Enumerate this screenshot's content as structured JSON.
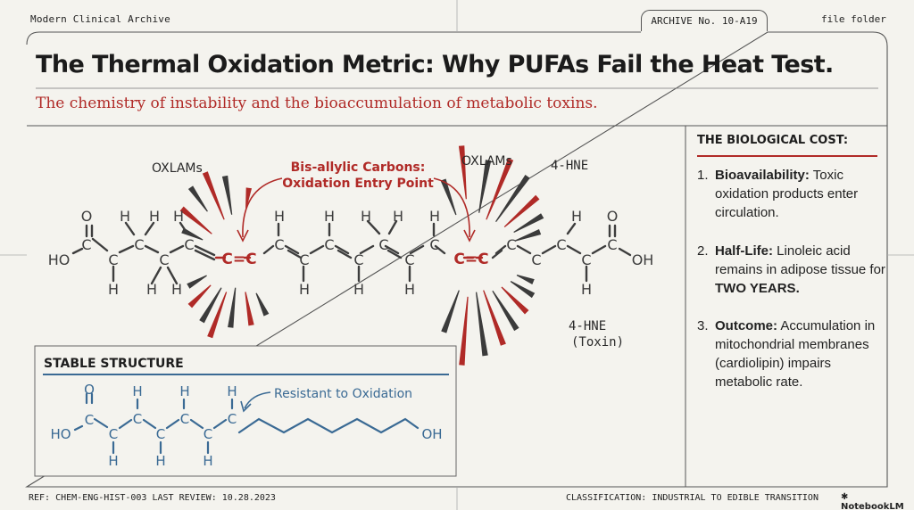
{
  "header": {
    "left": "Modern Clinical Archive",
    "tab": "ARCHIVE No. 10-A19",
    "right": "file folder"
  },
  "title": "The Thermal Oxidation Metric: Why PUFAs Fail the Heat Test.",
  "subtitle": "The chemistry of instability and the bioaccumulation of metabolic toxins.",
  "sidebar": {
    "heading": "THE BIOLOGICAL COST:",
    "points": [
      {
        "num": "1.",
        "label": "Bioavailability:",
        "text": "Toxic oxidation products enter circulation."
      },
      {
        "num": "2.",
        "label": "Half-Life:",
        "text": "Linoleic acid remains in adipose tissue for",
        "emph": "TWO YEARS."
      },
      {
        "num": "3.",
        "label": "Outcome:",
        "text": "Accumulation in mitochondrial membranes (cardiolipin) impairs metabolic rate."
      }
    ]
  },
  "diagram": {
    "callout_line1": "Bis-allylic Carbons:",
    "callout_line2": "Oxidation Entry Point",
    "oxlams_left": "OXLAMs",
    "oxlams_right": "OXLAMs",
    "hne_top": "4-HNE",
    "hne_bottom": "4-HNE",
    "toxin": "(Toxin)",
    "atoms": {
      "o": "O",
      "c": "C",
      "h": "H",
      "ho": "HO",
      "oh": "OH",
      "cc": "C=C"
    }
  },
  "stable": {
    "heading": "STABLE STRUCTURE",
    "note": "Resistant to Oxidation"
  },
  "footer": {
    "left": "REF: CHEM-ENG-HIST-003  LAST REVIEW: 10.28.2023",
    "right": "CLASSIFICATION: INDUSTRIAL TO EDIBLE TRANSITION",
    "brand": "NotebookLM"
  },
  "colors": {
    "accent_red": "#b02a27",
    "stable_blue": "#3a6a94",
    "ink": "#3d3d3d",
    "paper": "#f4f3ee"
  }
}
